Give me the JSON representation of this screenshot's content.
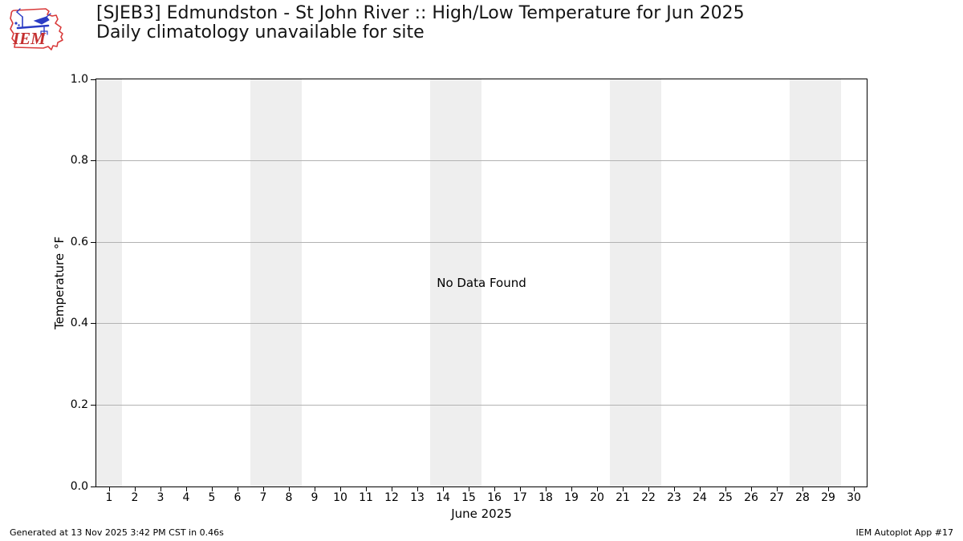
{
  "header": {
    "logo_text": "IEM",
    "title_line1": "[SJEB3] Edmundston - St John River :: High/Low Temperature for Jun 2025",
    "title_line2": "Daily climatology unavailable for site"
  },
  "chart_data": {
    "type": "line",
    "title": "[SJEB3] Edmundston - St John River :: High/Low Temperature for Jun 2025",
    "subtitle": "Daily climatology unavailable for site",
    "no_data_text": "No Data Found",
    "xlabel": "June 2025",
    "ylabel": "Temperature °F",
    "xlim": [
      0.5,
      30.5
    ],
    "ylim": [
      0.0,
      1.0
    ],
    "x_ticks": [
      1,
      2,
      3,
      4,
      5,
      6,
      7,
      8,
      9,
      10,
      11,
      12,
      13,
      14,
      15,
      16,
      17,
      18,
      19,
      20,
      21,
      22,
      23,
      24,
      25,
      26,
      27,
      28,
      29,
      30
    ],
    "y_ticks": [
      1.0,
      0.8,
      0.6,
      0.4,
      0.2,
      0.0
    ],
    "y_tick_labels": [
      "1.0",
      "0.8",
      "0.6",
      "0.4",
      "0.2",
      "0.0"
    ],
    "series": [],
    "grid": "horizontal-only",
    "legend": "none",
    "weekend_bands": [
      [
        0.5,
        1.5
      ],
      [
        6.5,
        8.5
      ],
      [
        13.5,
        15.5
      ],
      [
        20.5,
        22.5
      ],
      [
        27.5,
        29.5
      ]
    ],
    "colors": {
      "band": "#eeeeee",
      "grid": "#b2b2b2",
      "spine": "#000000"
    }
  },
  "footer": {
    "left": "Generated at 13 Nov 2025 3:42 PM CST in 0.46s",
    "right": "IEM Autoplot App #17"
  }
}
